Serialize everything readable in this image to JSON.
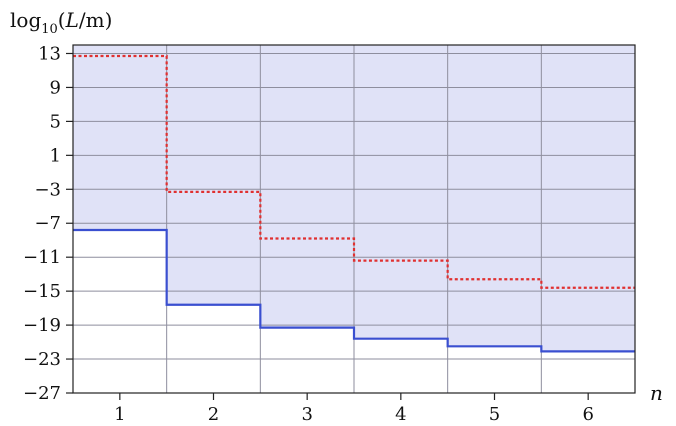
{
  "chart_data": {
    "type": "line",
    "step": true,
    "x": [
      1,
      2,
      3,
      4,
      5,
      6
    ],
    "xlim": [
      0.5,
      6.5
    ],
    "ylim": [
      -27,
      14
    ],
    "yticks": [
      13,
      9,
      5,
      1,
      -3,
      -7,
      -11,
      -15,
      -19,
      -23,
      -27
    ],
    "xticks": [
      1,
      2,
      3,
      4,
      5,
      6
    ],
    "grid": true,
    "ylabel": {
      "prefix": "log",
      "subscript": "10",
      "open": "(",
      "var": "L",
      "unit": "/m)"
    },
    "xlabel": "n",
    "series": [
      {
        "style": "dotted",
        "color": "#e03030",
        "values": [
          12.7,
          -3.3,
          -8.8,
          -11.4,
          -13.6,
          -14.6
        ]
      },
      {
        "style": "solid",
        "color": "#3a4fd0",
        "fill_above": "#e0e2f7",
        "values": [
          -7.8,
          -16.6,
          -19.3,
          -20.6,
          -21.5,
          -22.1
        ]
      }
    ],
    "tick_labels_y": [
      "13",
      "9",
      "5",
      "1",
      "−3",
      "−7",
      "−11",
      "−15",
      "−19",
      "−23",
      "−27"
    ],
    "tick_labels_x": [
      "1",
      "2",
      "3",
      "4",
      "5",
      "6"
    ]
  }
}
